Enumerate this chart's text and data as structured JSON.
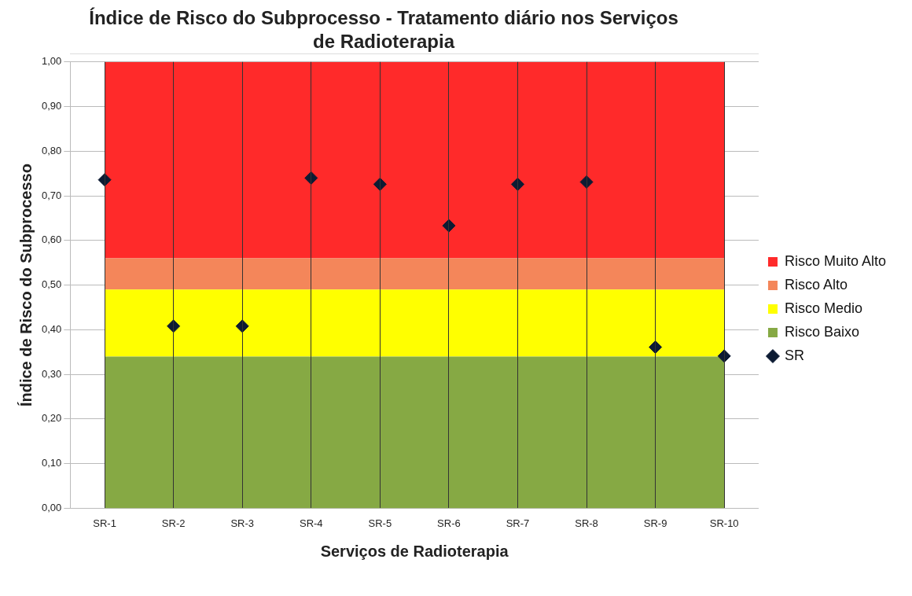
{
  "chart_data": {
    "type": "area",
    "stacked": true,
    "title": "Índice de Risco do Subprocesso  - Tratamento diário nos Serviços de Radioterapia",
    "xlabel": "Serviços de Radioterapia",
    "ylabel": "Índice de Risco do Subprocesso",
    "categories": [
      "SR-1",
      "SR-2",
      "SR-3",
      "SR-4",
      "SR-5",
      "SR-6",
      "SR-7",
      "SR-8",
      "SR-9",
      "SR-10"
    ],
    "series": [
      {
        "name": "Risco Baixo",
        "color": "#86a944",
        "values": [
          0.34,
          0.34,
          0.34,
          0.34,
          0.34,
          0.34,
          0.34,
          0.34,
          0.34,
          0.34
        ]
      },
      {
        "name": "Risco Medio",
        "color": "#ffff00",
        "values": [
          0.15,
          0.15,
          0.15,
          0.15,
          0.15,
          0.15,
          0.15,
          0.15,
          0.15,
          0.15
        ]
      },
      {
        "name": "Risco Alto",
        "color": "#f4865a",
        "values": [
          0.07,
          0.07,
          0.07,
          0.07,
          0.07,
          0.07,
          0.07,
          0.07,
          0.07,
          0.07
        ]
      },
      {
        "name": "Risco Muito Alto",
        "color": "#ff2a2a",
        "values": [
          0.44,
          0.44,
          0.44,
          0.44,
          0.44,
          0.44,
          0.44,
          0.44,
          0.44,
          0.44
        ]
      },
      {
        "name": "SR",
        "type": "scatter",
        "marker": "diamond",
        "color": "#0d1b33",
        "values": [
          0.736,
          0.408,
          0.408,
          0.74,
          0.726,
          0.633,
          0.726,
          0.731,
          0.361,
          0.341
        ]
      }
    ],
    "ylim": [
      0,
      1
    ],
    "yticks": [
      {
        "value": 0,
        "label": "0,00"
      },
      {
        "value": 0.1,
        "label": "0,10"
      },
      {
        "value": 0.2,
        "label": "0,20"
      },
      {
        "value": 0.3,
        "label": "0,30"
      },
      {
        "value": 0.4,
        "label": "0,40"
      },
      {
        "value": 0.5,
        "label": "0,50"
      },
      {
        "value": 0.6,
        "label": "0,60"
      },
      {
        "value": 0.7,
        "label": "0,70"
      },
      {
        "value": 0.8,
        "label": "0,80"
      },
      {
        "value": 0.9,
        "label": "0,90"
      },
      {
        "value": 1,
        "label": "1,00"
      }
    ],
    "grid": true,
    "legend": "right"
  }
}
